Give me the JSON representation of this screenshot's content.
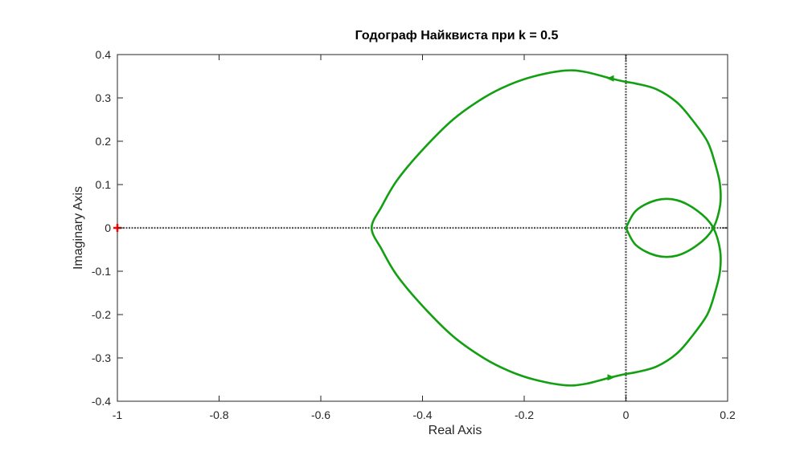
{
  "chart_data": {
    "type": "line",
    "title": "Годограф Найквиста при k = 0.5",
    "xlabel": "Real Axis",
    "ylabel": "Imaginary Axis",
    "xlim": [
      -1,
      0.2
    ],
    "ylim": [
      -0.4,
      0.4
    ],
    "xticks": [
      -1,
      -0.8,
      -0.6,
      -0.4,
      -0.2,
      0,
      0.2
    ],
    "xtick_labels": [
      "-1",
      "-0.8",
      "-0.6",
      "-0.4",
      "-0.2",
      "0",
      "0.2"
    ],
    "yticks": [
      -0.4,
      -0.3,
      -0.2,
      -0.1,
      0,
      0.1,
      0.2,
      0.3,
      0.4
    ],
    "ytick_labels": [
      "-0.4",
      "-0.3",
      "-0.2",
      "-0.1",
      "0",
      "0.1",
      "0.2",
      "0.3",
      "0.4"
    ],
    "grid": false,
    "colors": {
      "curve": "#12a012",
      "critical_point": "#ff0000",
      "reference_lines": "#555555",
      "axes": "#262626"
    },
    "critical_point": {
      "x": -1,
      "y": 0
    },
    "series": [
      {
        "x": [
          0,
          0.02,
          0.06,
          0.1,
          0.14,
          0.17,
          0.185,
          0.185,
          0.175,
          0.16,
          0.13,
          0.1,
          0.06,
          0.02,
          0,
          -0.03,
          -0.08,
          -0.12,
          -0.18,
          -0.23,
          -0.28,
          -0.34,
          -0.4,
          -0.45,
          -0.48,
          -0.5,
          -0.48,
          -0.45,
          -0.4,
          -0.34,
          -0.28,
          -0.23,
          -0.18,
          -0.12,
          -0.08,
          -0.03,
          0,
          0.02,
          0.06,
          0.1,
          0.13,
          0.16,
          0.175,
          0.185,
          0.185,
          0.17,
          0.14,
          0.1,
          0.06,
          0.02,
          0
        ],
        "y": [
          0,
          -0.04,
          -0.064,
          -0.064,
          -0.04,
          -0.004,
          0.05,
          0.1,
          0.15,
          0.2,
          0.25,
          0.29,
          0.32,
          0.333,
          0.337,
          0.345,
          0.36,
          0.363,
          0.35,
          0.33,
          0.3,
          0.25,
          0.18,
          0.11,
          0.05,
          0,
          -0.05,
          -0.11,
          -0.18,
          -0.25,
          -0.3,
          -0.33,
          -0.35,
          -0.363,
          -0.36,
          -0.345,
          -0.337,
          -0.333,
          -0.32,
          -0.29,
          -0.25,
          -0.2,
          -0.15,
          -0.1,
          -0.05,
          0.004,
          0.04,
          0.064,
          0.064,
          0.04,
          0
        ]
      }
    ],
    "arrows": [
      {
        "x": -0.03,
        "y": 0.345,
        "direction": "left"
      },
      {
        "x": -0.03,
        "y": -0.345,
        "direction": "right"
      }
    ]
  }
}
